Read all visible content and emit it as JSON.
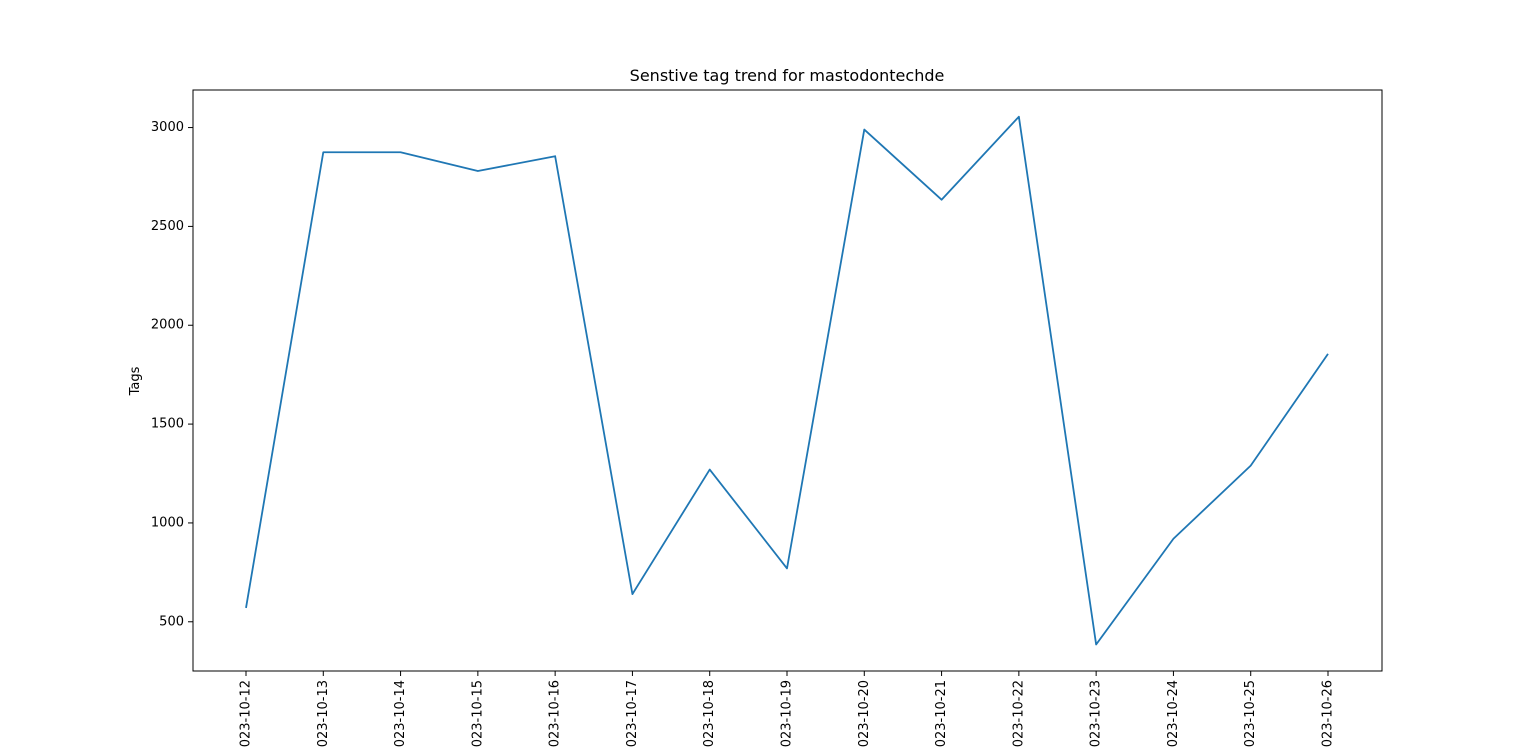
{
  "chart_data": {
    "type": "line",
    "title": "Senstive tag trend for mastodontechde",
    "xlabel": "",
    "ylabel": "Tags",
    "x": [
      "2023-10-12",
      "2023-10-13",
      "2023-10-14",
      "2023-10-15",
      "2023-10-16",
      "2023-10-17",
      "2023-10-18",
      "2023-10-19",
      "2023-10-20",
      "2023-10-21",
      "2023-10-22",
      "2023-10-23",
      "2023-10-24",
      "2023-10-25",
      "2023-10-26"
    ],
    "x_tick_labels": [
      "023-10-12",
      "023-10-13",
      "023-10-14",
      "023-10-15",
      "023-10-16",
      "023-10-17",
      "023-10-18",
      "023-10-19",
      "023-10-20",
      "023-10-21",
      "023-10-22",
      "023-10-23",
      "023-10-24",
      "023-10-25",
      "023-10-26"
    ],
    "series": [
      {
        "values": [
          570,
          2875,
          2875,
          2780,
          2855,
          640,
          1270,
          770,
          2990,
          2635,
          3055,
          385,
          920,
          1290,
          1855
        ],
        "color": "#1f77b4"
      }
    ],
    "yticks": [
      500,
      1000,
      1500,
      2000,
      2500,
      3000
    ],
    "ylim": [
      251,
      3190
    ],
    "grid": false,
    "legend": false
  }
}
